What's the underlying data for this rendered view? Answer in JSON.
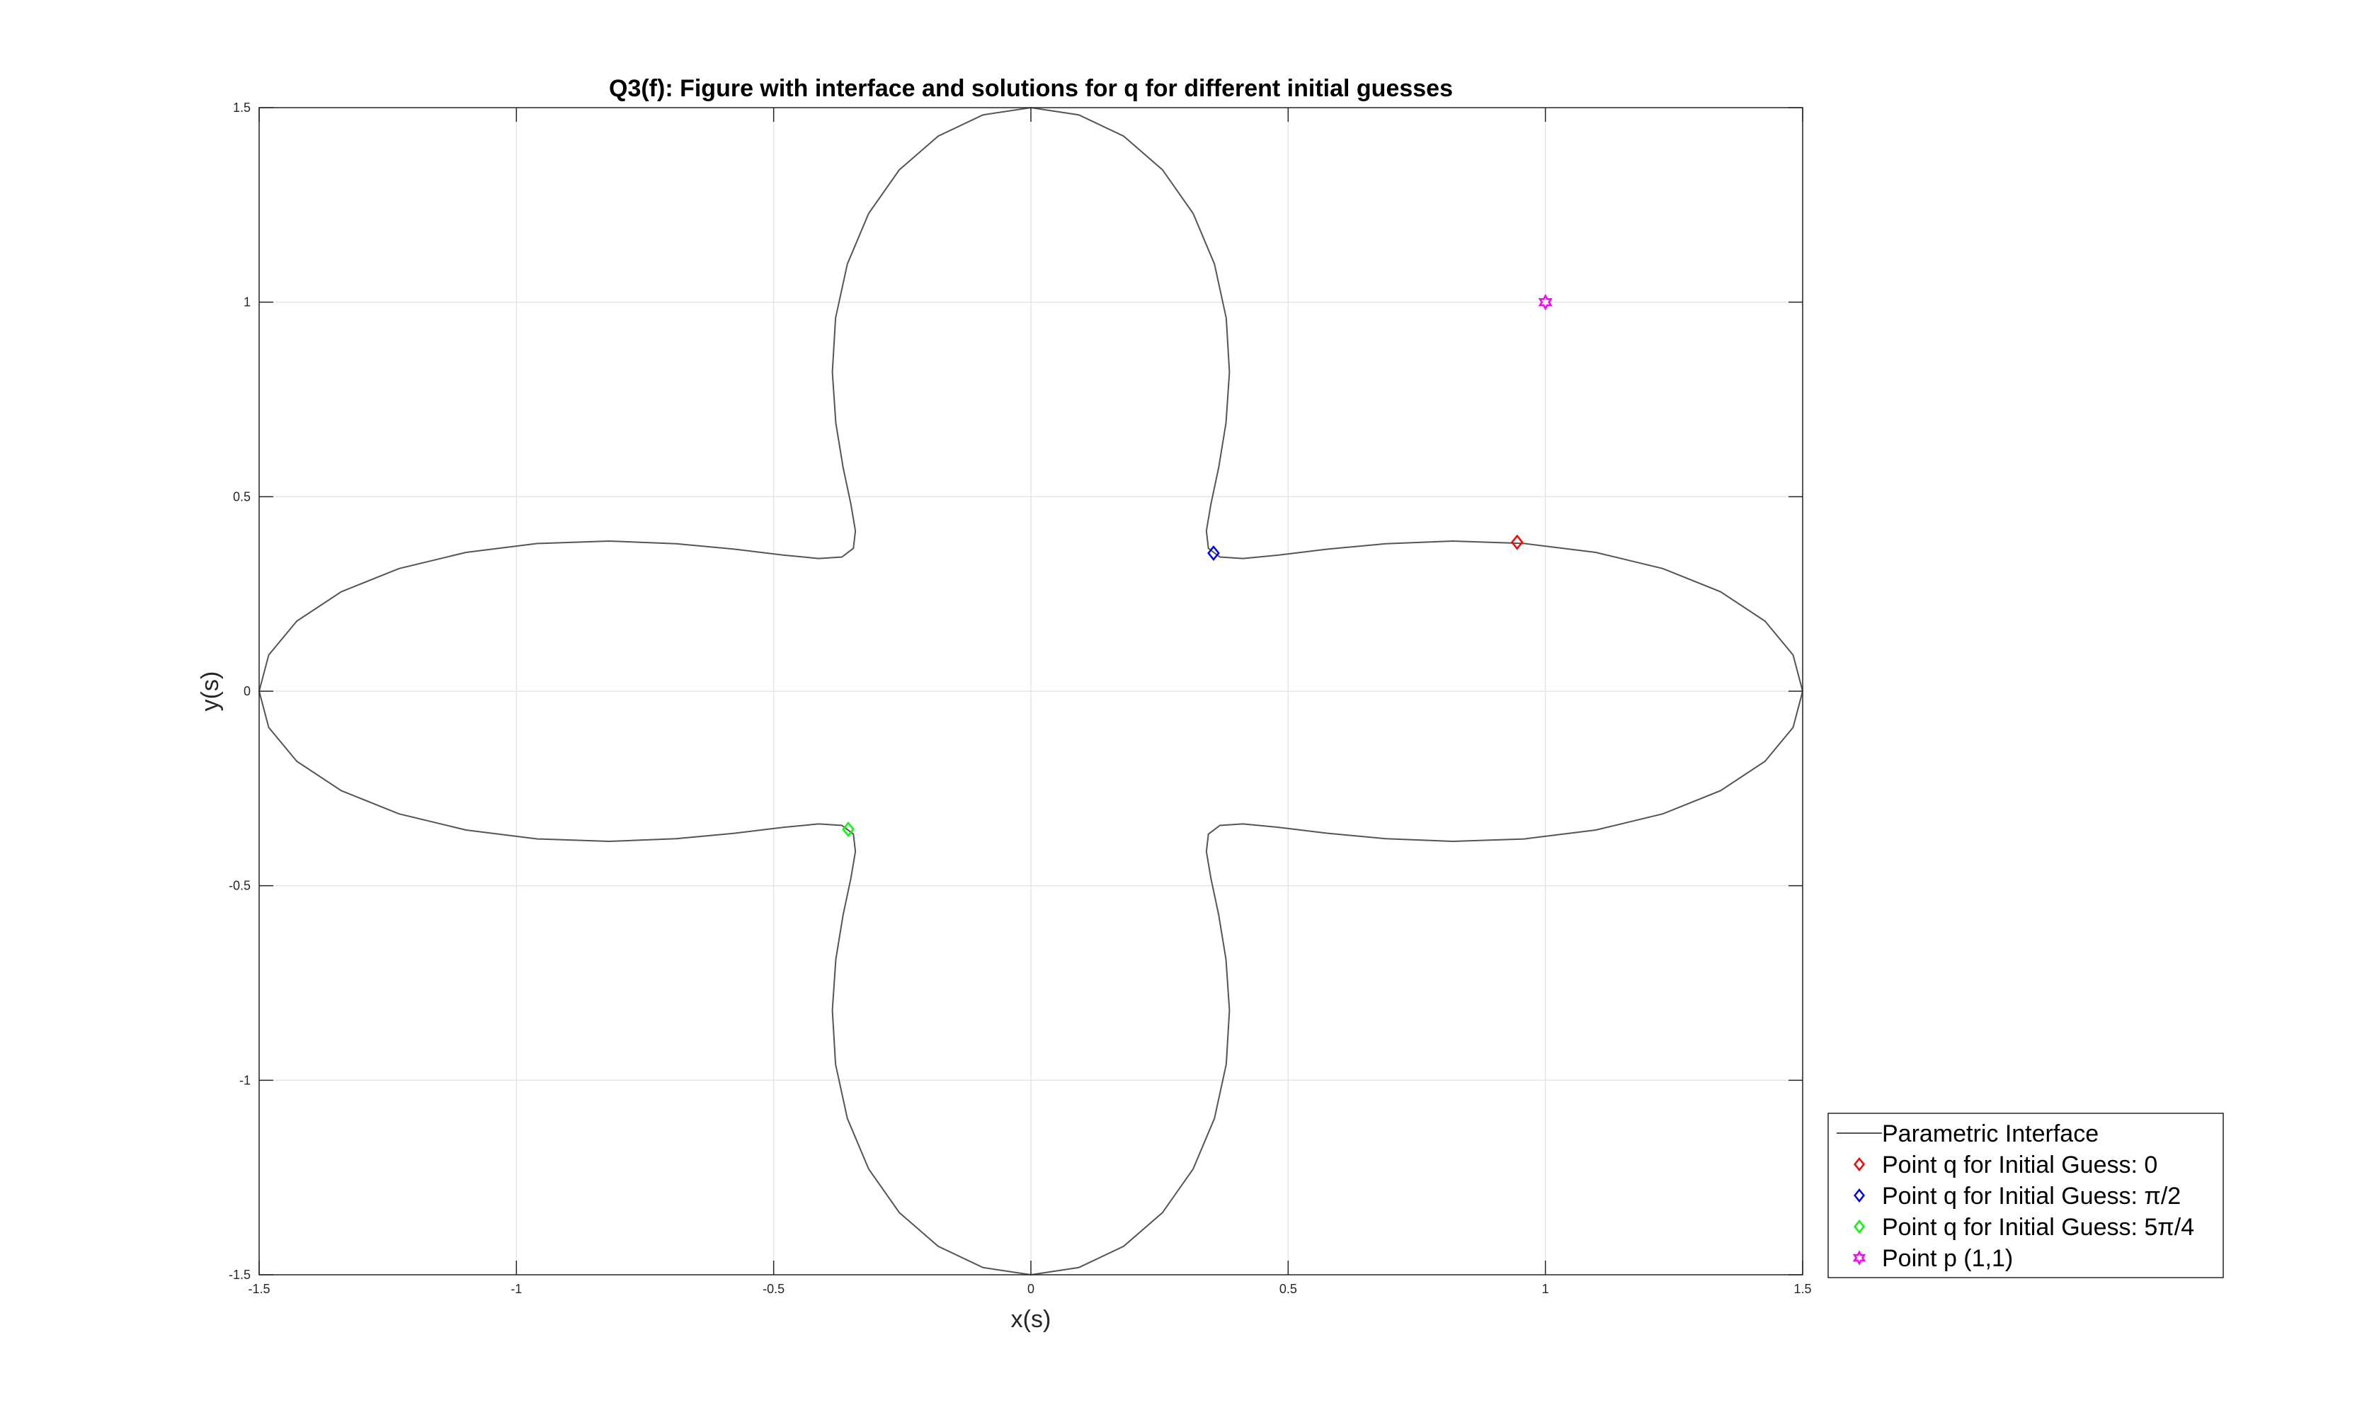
{
  "chart_data": {
    "type": "scatter",
    "title": "Q3(f): Figure with interface and solutions for q for different initial guesses",
    "xlabel": "x(s)",
    "ylabel": "y(s)",
    "xlim": [
      -1.5,
      1.5
    ],
    "ylim": [
      -1.5,
      1.5
    ],
    "grid": true,
    "legend_position": "outside-bottom-right",
    "x_ticks": [
      -1.5,
      -1,
      -0.5,
      0,
      0.5,
      1,
      1.5
    ],
    "y_ticks": [
      -1.5,
      -1,
      -0.5,
      0,
      0.5,
      1,
      1.5
    ],
    "x_tick_labels": [
      "-1.5",
      "-1",
      "-0.5",
      "0",
      "0.5",
      "1",
      "1.5"
    ],
    "y_tick_labels": [
      "-1.5",
      "-1",
      "-0.5",
      "0",
      "0.5",
      "1",
      "1.5"
    ],
    "series": [
      {
        "name": "Parametric Interface",
        "kind": "line",
        "color": "#555555",
        "curve": "x(s) = (1 + 0.5 cos 4s) cos s, y(s) = (1 + 0.5 cos 4s) sin s, s in [0, 2π]",
        "samples": 100
      },
      {
        "name": "Point q for Initial Guess: 0",
        "kind": "marker",
        "marker": "diamond",
        "color": "#ff0000",
        "x": [
          0.945
        ],
        "y": [
          0.383
        ]
      },
      {
        "name": "Point q for Initial Guess: π/2",
        "kind": "marker",
        "marker": "diamond",
        "color": "#0000ff",
        "x": [
          0.355
        ],
        "y": [
          0.355
        ]
      },
      {
        "name": "Point q for Initial Guess: 5π/4",
        "kind": "marker",
        "marker": "diamond",
        "color": "#00ff00",
        "x": [
          -0.355
        ],
        "y": [
          -0.355
        ]
      },
      {
        "name": "Point p (1,1)",
        "kind": "marker",
        "marker": "hexagram",
        "color": "#ff00ff",
        "x": [
          1.0
        ],
        "y": [
          1.0
        ]
      }
    ]
  }
}
